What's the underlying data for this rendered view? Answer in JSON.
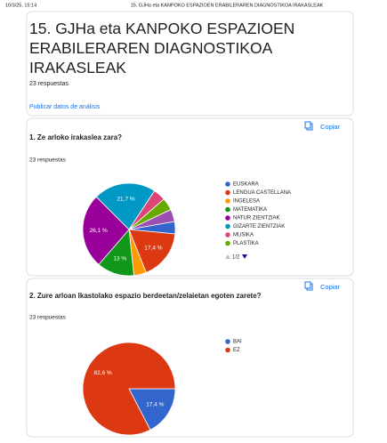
{
  "header": {
    "datetime": "10/3/25, 15:14",
    "doc_title": "15. GJHa eta KANPOKO ESPAZIOEN ERABILERAREN DIAGNOSTIKOA IRAKASLEAK"
  },
  "form": {
    "title": "15. GJHa eta KANPOKO ESPAZIOEN ERABILERAREN DIAGNOSTIKOA IRAKASLEAK",
    "responses": "23 respuestas",
    "publish": "Publicar datos de análisis"
  },
  "chart_data": [
    {
      "type": "pie",
      "title": "1. Ze arloko irakaslea zara?",
      "subtitle": "23 respuestas",
      "action": "Copiar",
      "legend_page": "1/2",
      "categories": [
        "EUSKARA",
        "LENGUA CASTELLANA",
        "INGELESA",
        "MATEMATIKA",
        "NATUR ZIENTZIAK",
        "GIZARTE ZIENTZIAK",
        "MUSIKA",
        "PLASTIKA",
        null
      ],
      "values": [
        4.3,
        17.4,
        4.3,
        13,
        26.1,
        21.7,
        4.3,
        4.3,
        4.3
      ],
      "value_labels": [
        null,
        "17,4 %",
        null,
        "13 %",
        "26,1 %",
        "21,7 %",
        null,
        null,
        null
      ],
      "colors": [
        "#3366cc",
        "#dc3912",
        "#ff9900",
        "#109618",
        "#990099",
        "#0099c6",
        "#dd4477",
        "#66aa00",
        "#9c4fb0"
      ],
      "start_angle": 80
    },
    {
      "type": "pie",
      "title": "2. Zure arloan Ikastolako espazio berdeetan/zelaietan egoten zarete?",
      "subtitle": "23 respuestas",
      "action": "Copiar",
      "categories": [
        "BAI",
        "EZ"
      ],
      "values": [
        17.4,
        82.6
      ],
      "value_labels": [
        "17,4 %",
        "82,6 %"
      ],
      "colors": [
        "#3366cc",
        "#dc3912"
      ],
      "start_angle": 90
    }
  ]
}
